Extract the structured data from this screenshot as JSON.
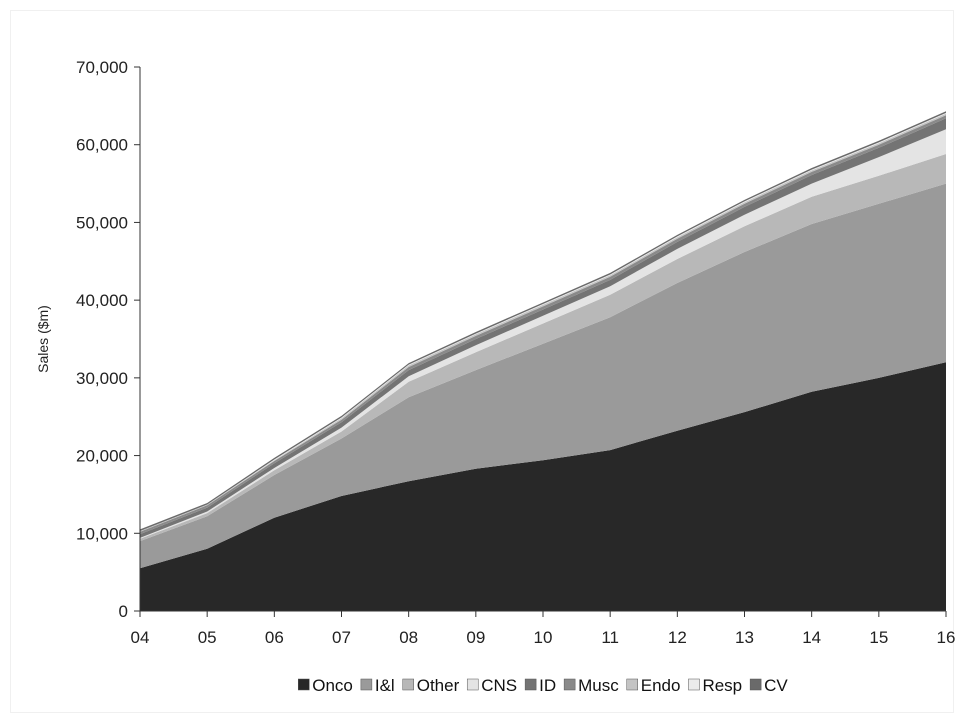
{
  "chart_data": {
    "type": "area",
    "stacked": true,
    "x": [
      "04",
      "05",
      "06",
      "07",
      "08",
      "09",
      "10",
      "11",
      "12",
      "13",
      "14",
      "15",
      "16"
    ],
    "ylabel": "Sales ($m)",
    "xlabel": "",
    "ylim": [
      0,
      70000
    ],
    "yticks": [
      "0",
      "10,000",
      "20,000",
      "30,000",
      "40,000",
      "50,000",
      "60,000",
      "70,000"
    ],
    "ytick_values": [
      0,
      10000,
      20000,
      30000,
      40000,
      50000,
      60000,
      70000
    ],
    "grid": false,
    "legend_position": "bottom",
    "series": [
      {
        "name": "Onco",
        "color": "#282828",
        "values": [
          5500,
          8000,
          12000,
          14800,
          16700,
          18300,
          19400,
          20700,
          23200,
          25600,
          28200,
          30000,
          32000
        ]
      },
      {
        "name": "I&l",
        "color": "#9a9a9a",
        "values": [
          3500,
          4200,
          5500,
          7400,
          10800,
          12700,
          15000,
          17100,
          19000,
          20600,
          21600,
          22400,
          23000
        ]
      },
      {
        "name": "Other",
        "color": "#b8b8b8",
        "values": [
          300,
          400,
          600,
          900,
          2000,
          2300,
          2600,
          2900,
          3100,
          3300,
          3500,
          3600,
          3800
        ]
      },
      {
        "name": "CNS",
        "color": "#e4e4e4",
        "values": [
          100,
          200,
          300,
          500,
          700,
          900,
          1000,
          1100,
          1300,
          1500,
          1700,
          2400,
          3200
        ]
      },
      {
        "name": "ID",
        "color": "#747474",
        "values": [
          500,
          500,
          600,
          700,
          800,
          800,
          800,
          800,
          900,
          1000,
          1100,
          1200,
          1400
        ]
      },
      {
        "name": "Musc",
        "color": "#8a8a8a",
        "values": [
          300,
          300,
          300,
          300,
          400,
          400,
          400,
          400,
          400,
          400,
          400,
          400,
          400
        ]
      },
      {
        "name": "Endo",
        "color": "#c4c4c4",
        "values": [
          100,
          100,
          100,
          200,
          200,
          200,
          200,
          200,
          200,
          200,
          200,
          200,
          200
        ]
      },
      {
        "name": "Resp",
        "color": "#ececec",
        "values": [
          0,
          0,
          100,
          100,
          100,
          100,
          100,
          100,
          100,
          100,
          100,
          100,
          100
        ]
      },
      {
        "name": "CV",
        "color": "#6a6a6a",
        "values": [
          200,
          200,
          200,
          200,
          200,
          200,
          200,
          200,
          200,
          200,
          200,
          200,
          200
        ]
      }
    ]
  }
}
